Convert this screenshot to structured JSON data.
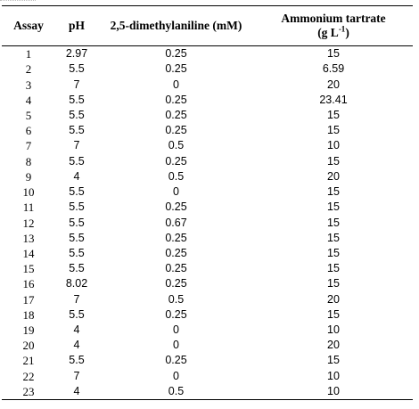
{
  "table": {
    "headers": {
      "assay": "Assay",
      "ph": "pH",
      "dma": "2,5-dimethylaniline (mM)",
      "amm_line1": "Ammonium tartrate",
      "amm_line2_pre": "(g L",
      "amm_line2_sup": "-1",
      "amm_line2_post": ")"
    },
    "rows": [
      {
        "assay": "1",
        "ph": "2.97",
        "dma": "0.25",
        "amm": "15"
      },
      {
        "assay": "2",
        "ph": "5.5",
        "dma": "0.25",
        "amm": "6.59"
      },
      {
        "assay": "3",
        "ph": "7",
        "dma": "0",
        "amm": "20"
      },
      {
        "assay": "4",
        "ph": "5.5",
        "dma": "0.25",
        "amm": "23.41"
      },
      {
        "assay": "5",
        "ph": "5.5",
        "dma": "0.25",
        "amm": "15"
      },
      {
        "assay": "6",
        "ph": "5.5",
        "dma": "0.25",
        "amm": "15"
      },
      {
        "assay": "7",
        "ph": "7",
        "dma": "0.5",
        "amm": "10"
      },
      {
        "assay": "8",
        "ph": "5.5",
        "dma": "0.25",
        "amm": "15"
      },
      {
        "assay": "9",
        "ph": "4",
        "dma": "0.5",
        "amm": "20"
      },
      {
        "assay": "10",
        "ph": "5.5",
        "dma": "0",
        "amm": "15"
      },
      {
        "assay": "11",
        "ph": "5.5",
        "dma": "0.25",
        "amm": "15"
      },
      {
        "assay": "12",
        "ph": "5.5",
        "dma": "0.67",
        "amm": "15"
      },
      {
        "assay": "13",
        "ph": "5.5",
        "dma": "0.25",
        "amm": "15"
      },
      {
        "assay": "14",
        "ph": "5.5",
        "dma": "0.25",
        "amm": "15"
      },
      {
        "assay": "15",
        "ph": "5.5",
        "dma": "0.25",
        "amm": "15"
      },
      {
        "assay": "16",
        "ph": "8.02",
        "dma": "0.25",
        "amm": "15"
      },
      {
        "assay": "17",
        "ph": "7",
        "dma": "0.5",
        "amm": "20"
      },
      {
        "assay": "18",
        "ph": "5.5",
        "dma": "0.25",
        "amm": "15"
      },
      {
        "assay": "19",
        "ph": "4",
        "dma": "0",
        "amm": "10"
      },
      {
        "assay": "20",
        "ph": "4",
        "dma": "0",
        "amm": "20"
      },
      {
        "assay": "21",
        "ph": "5.5",
        "dma": "0.25",
        "amm": "15"
      },
      {
        "assay": "22",
        "ph": "7",
        "dma": "0",
        "amm": "10"
      },
      {
        "assay": "23",
        "ph": "4",
        "dma": "0.5",
        "amm": "10"
      }
    ]
  }
}
